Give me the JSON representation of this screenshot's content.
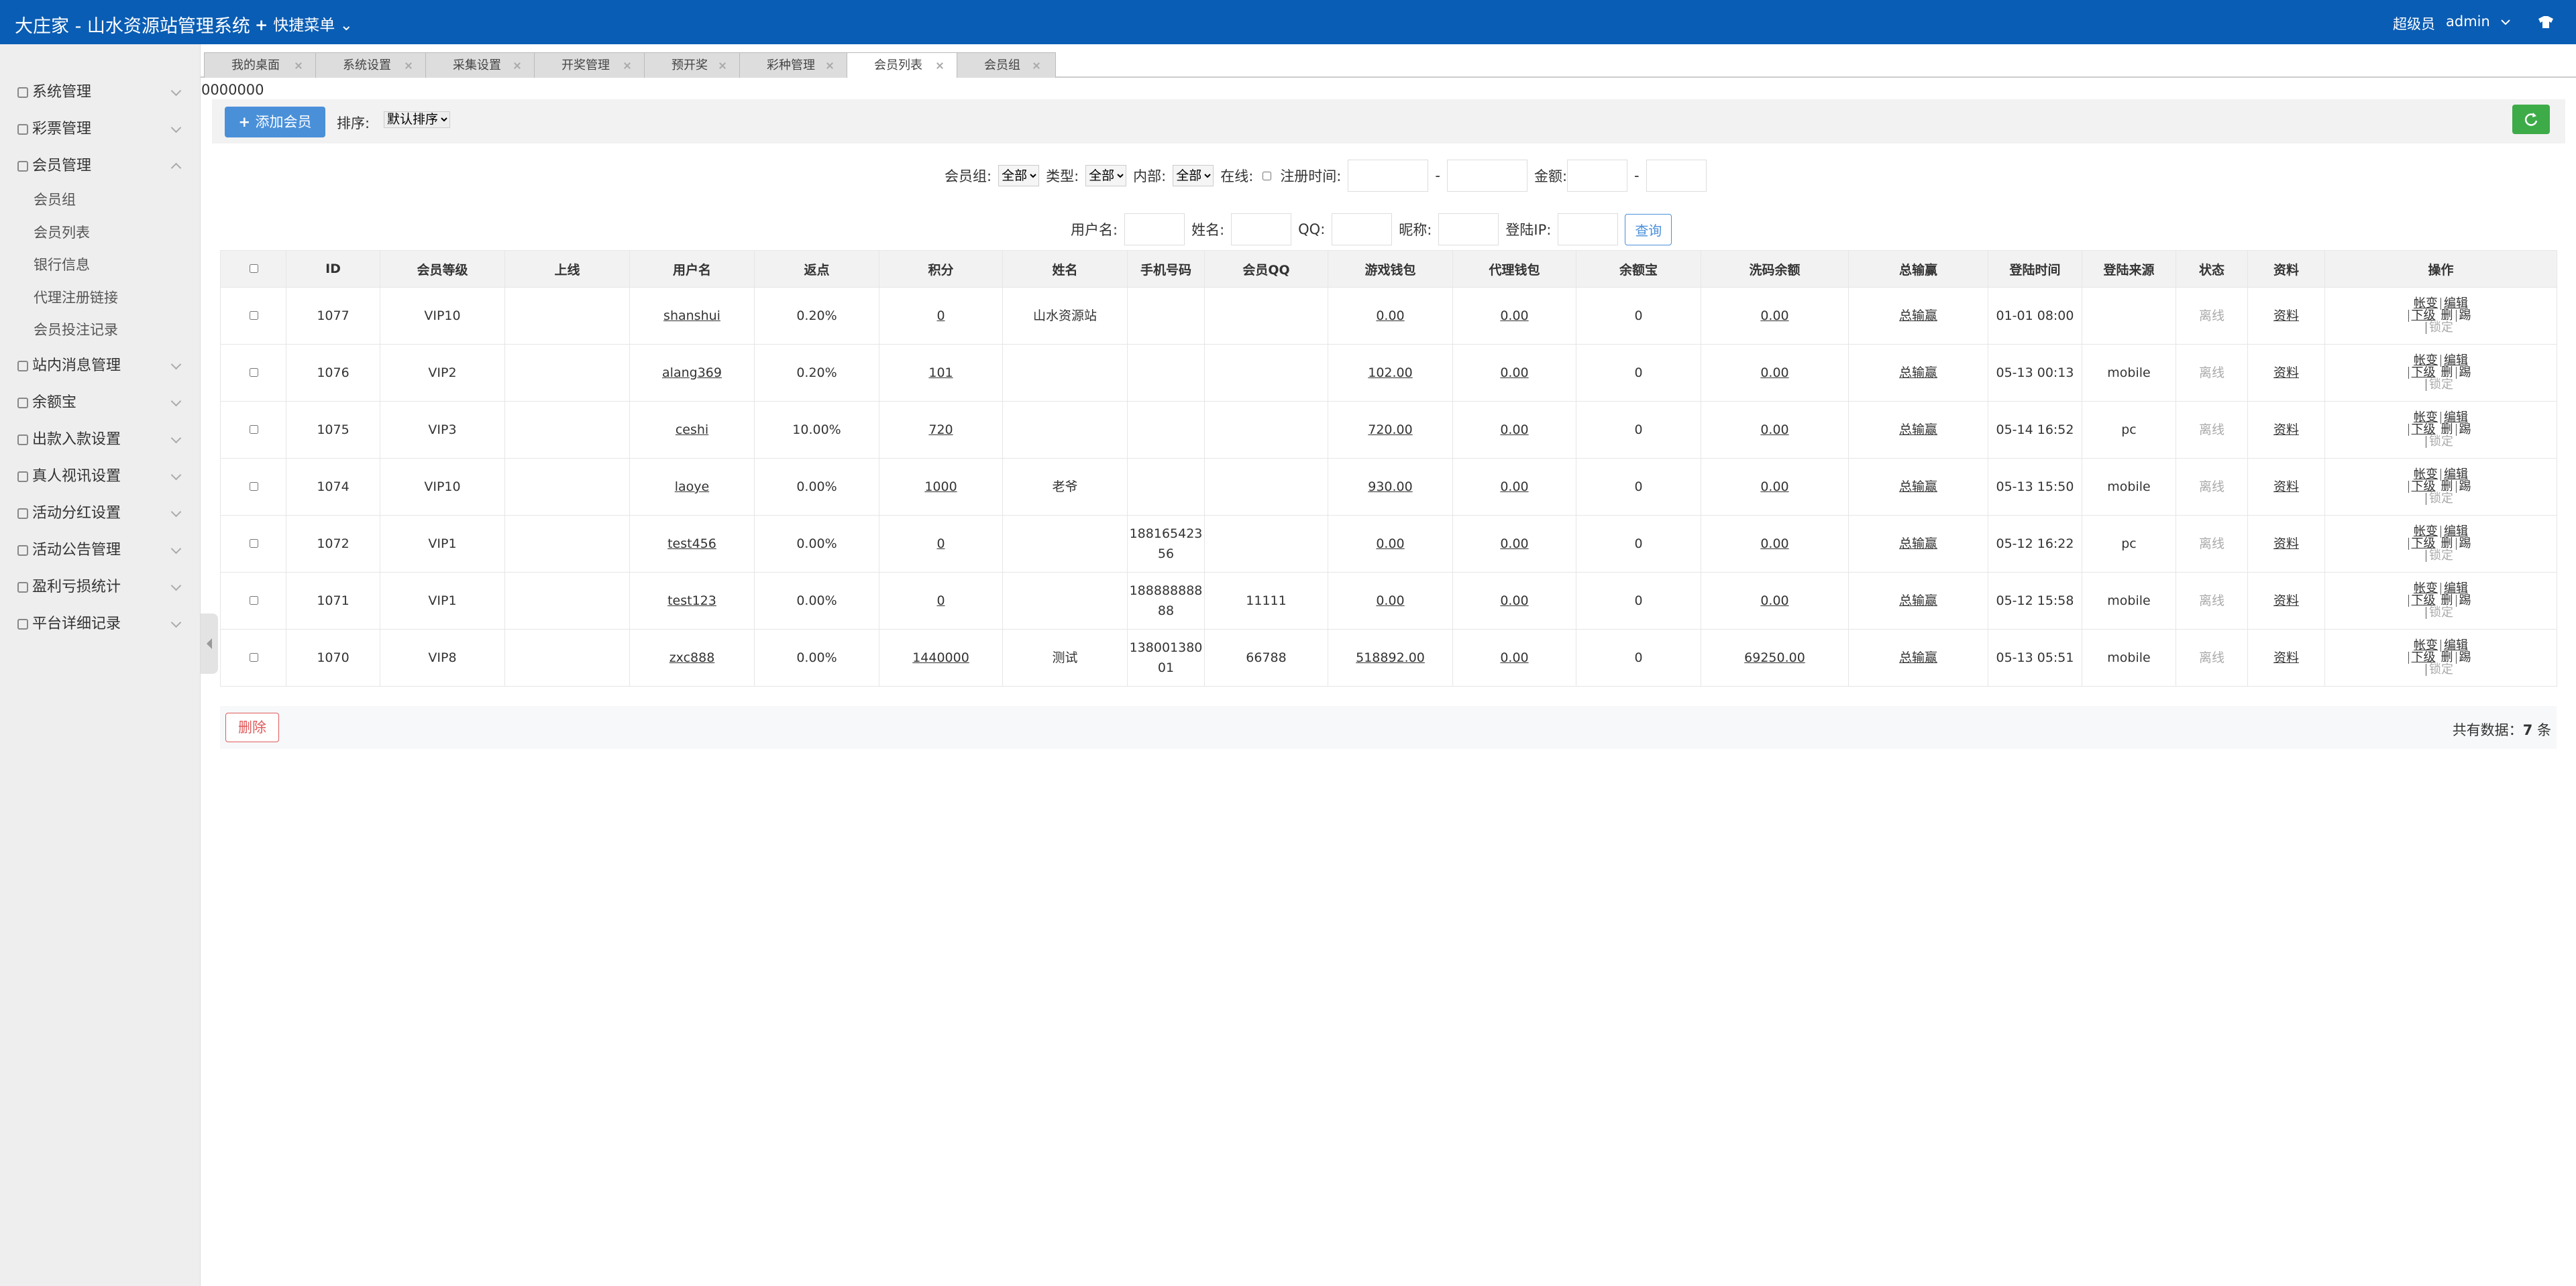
{
  "header": {
    "title": "大庄家 - 山水资源站管理系统",
    "quick_menu": "快捷菜单",
    "role": "超级员",
    "user": "admin"
  },
  "sidebar": [
    {
      "label": "系统管理"
    },
    {
      "label": "彩票管理"
    },
    {
      "label": "会员管理",
      "children": [
        "会员组",
        "会员列表",
        "银行信息",
        "代理注册链接",
        "会员投注记录"
      ]
    },
    {
      "label": "站内消息管理"
    },
    {
      "label": "余额宝"
    },
    {
      "label": "出款入款设置"
    },
    {
      "label": "真人视讯设置"
    },
    {
      "label": "活动分红设置"
    },
    {
      "label": "活动公告管理"
    },
    {
      "label": "盈利亏损统计"
    },
    {
      "label": "平台详细记录"
    }
  ],
  "tabs": [
    "我的桌面",
    "系统设置",
    "采集设置",
    "开奖管理",
    "预开奖",
    "彩种管理",
    "会员列表",
    "会员组"
  ],
  "breadcrumb": "0000000",
  "toolbar": {
    "add": "添加会员",
    "sort_label": "排序:",
    "sort_value": "默认排序"
  },
  "filters": {
    "group": "会员组:",
    "group_value": "全部",
    "type": "类型:",
    "type_value": "全部",
    "internal": "内部:",
    "internal_value": "全部",
    "online": "在线:",
    "reg_time": "注册时间:",
    "range_sep": "-",
    "amount": "金额:",
    "username": "用户名:",
    "name": "姓名:",
    "qq": "QQ:",
    "nickname": "昵称:",
    "login_ip": "登陆IP:",
    "search": "查询"
  },
  "table": {
    "headers": [
      "ID",
      "会员等级",
      "上线",
      "用户名",
      "返点",
      "积分",
      "姓名",
      "手机号码",
      "会员QQ",
      "游戏钱包",
      "代理钱包",
      "余额宝",
      "洗码余额",
      "总输赢",
      "登陆时间",
      "登陆来源",
      "状态",
      "资料",
      "操作"
    ],
    "actions": [
      "帐变",
      "编辑",
      "下级",
      "删",
      "踢",
      "锁定"
    ],
    "rows": [
      {
        "id": "1077",
        "level": "VIP10",
        "username": "shanshui",
        "rebate": "0.20%",
        "points": "0",
        "name": "山水资源站",
        "game": "0.00",
        "agent": "0.00",
        "yuebao": "0",
        "wash": "0.00",
        "winloss": "总输赢",
        "login": "01-01 08:00",
        "status": "离线",
        "info": "资料"
      },
      {
        "id": "1076",
        "level": "VIP2",
        "username": "alang369",
        "rebate": "0.20%",
        "points": "101",
        "game": "102.00",
        "agent": "0.00",
        "yuebao": "0",
        "wash": "0.00",
        "winloss": "总输赢",
        "login": "05-13 00:13",
        "source": "mobile",
        "status": "离线",
        "info": "资料"
      },
      {
        "id": "1075",
        "level": "VIP3",
        "username": "ceshi",
        "rebate": "10.00%",
        "points": "720",
        "game": "720.00",
        "agent": "0.00",
        "yuebao": "0",
        "wash": "0.00",
        "winloss": "总输赢",
        "login": "05-14 16:52",
        "source": "pc",
        "status": "离线",
        "info": "资料"
      },
      {
        "id": "1074",
        "level": "VIP10",
        "username": "laoye",
        "rebate": "0.00%",
        "points": "1000",
        "name": "老爷",
        "game": "930.00",
        "agent": "0.00",
        "yuebao": "0",
        "wash": "0.00",
        "winloss": "总输赢",
        "login": "05-13 15:50",
        "source": "mobile",
        "status": "离线",
        "info": "资料"
      },
      {
        "id": "1072",
        "level": "VIP1",
        "username": "test456",
        "rebate": "0.00%",
        "points": "0",
        "phone": "18816542356",
        "game": "0.00",
        "agent": "0.00",
        "yuebao": "0",
        "wash": "0.00",
        "winloss": "总输赢",
        "login": "05-12 16:22",
        "source": "pc",
        "status": "离线",
        "info": "资料"
      },
      {
        "id": "1071",
        "level": "VIP1",
        "username": "test123",
        "rebate": "0.00%",
        "points": "0",
        "phone": "18888888888",
        "qq": "11111",
        "game": "0.00",
        "agent": "0.00",
        "yuebao": "0",
        "wash": "0.00",
        "winloss": "总输赢",
        "login": "05-12 15:58",
        "source": "mobile",
        "status": "离线",
        "info": "资料"
      },
      {
        "id": "1070",
        "level": "VIP8",
        "username": "zxc888",
        "rebate": "0.00%",
        "points": "1440000",
        "name": "测试",
        "phone": "13800138001",
        "qq": "66788",
        "game": "518892.00",
        "agent": "0.00",
        "yuebao": "0",
        "wash": "69250.00",
        "winloss": "总输赢",
        "login": "05-13 05:51",
        "source": "mobile",
        "status": "离线",
        "info": "资料"
      }
    ]
  },
  "footer": {
    "delete": "删除",
    "total_label": "共有数据：",
    "total": 7,
    "total_unit": "条"
  }
}
